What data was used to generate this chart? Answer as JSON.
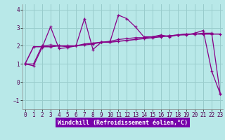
{
  "xlabel": "Windchill (Refroidissement éolien,°C)",
  "x": [
    0,
    1,
    2,
    3,
    4,
    5,
    6,
    7,
    8,
    9,
    10,
    11,
    12,
    13,
    14,
    15,
    16,
    17,
    18,
    19,
    20,
    21,
    22,
    23
  ],
  "line1_y": [
    1.0,
    0.9,
    1.9,
    3.05,
    1.85,
    1.9,
    2.0,
    3.5,
    1.8,
    2.2,
    2.2,
    3.7,
    3.5,
    3.05,
    2.5,
    2.5,
    2.6,
    2.5,
    2.6,
    2.6,
    2.7,
    2.85,
    0.6,
    -0.65
  ],
  "line2_y": [
    1.0,
    1.95,
    1.95,
    1.95,
    2.0,
    2.0,
    2.0,
    2.1,
    2.15,
    2.2,
    2.2,
    2.25,
    2.3,
    2.35,
    2.4,
    2.45,
    2.5,
    2.55,
    2.6,
    2.65,
    2.65,
    2.65,
    2.65,
    2.65
  ],
  "line3_y": [
    1.0,
    1.0,
    2.0,
    2.05,
    2.0,
    1.95,
    2.0,
    2.05,
    2.1,
    2.2,
    2.25,
    2.35,
    2.4,
    2.45,
    2.45,
    2.5,
    2.55,
    2.55,
    2.6,
    2.65,
    2.65,
    2.7,
    2.7,
    -0.65
  ],
  "line_color": "#880088",
  "bg_color": "#b8e8e8",
  "grid_color": "#99cccc",
  "axis_bg": "#b8e8e8",
  "bottom_bar_color": "#7700aa",
  "ylim": [
    -1.5,
    4.3
  ],
  "xlim": [
    -0.3,
    23.3
  ],
  "yticks": [
    -1,
    0,
    1,
    2,
    3,
    4
  ],
  "xticks": [
    0,
    1,
    2,
    3,
    4,
    5,
    6,
    7,
    8,
    9,
    10,
    11,
    12,
    13,
    14,
    15,
    16,
    17,
    18,
    19,
    20,
    21,
    22,
    23
  ],
  "tick_fontsize": 5.5,
  "xlabel_fontsize": 6.0
}
